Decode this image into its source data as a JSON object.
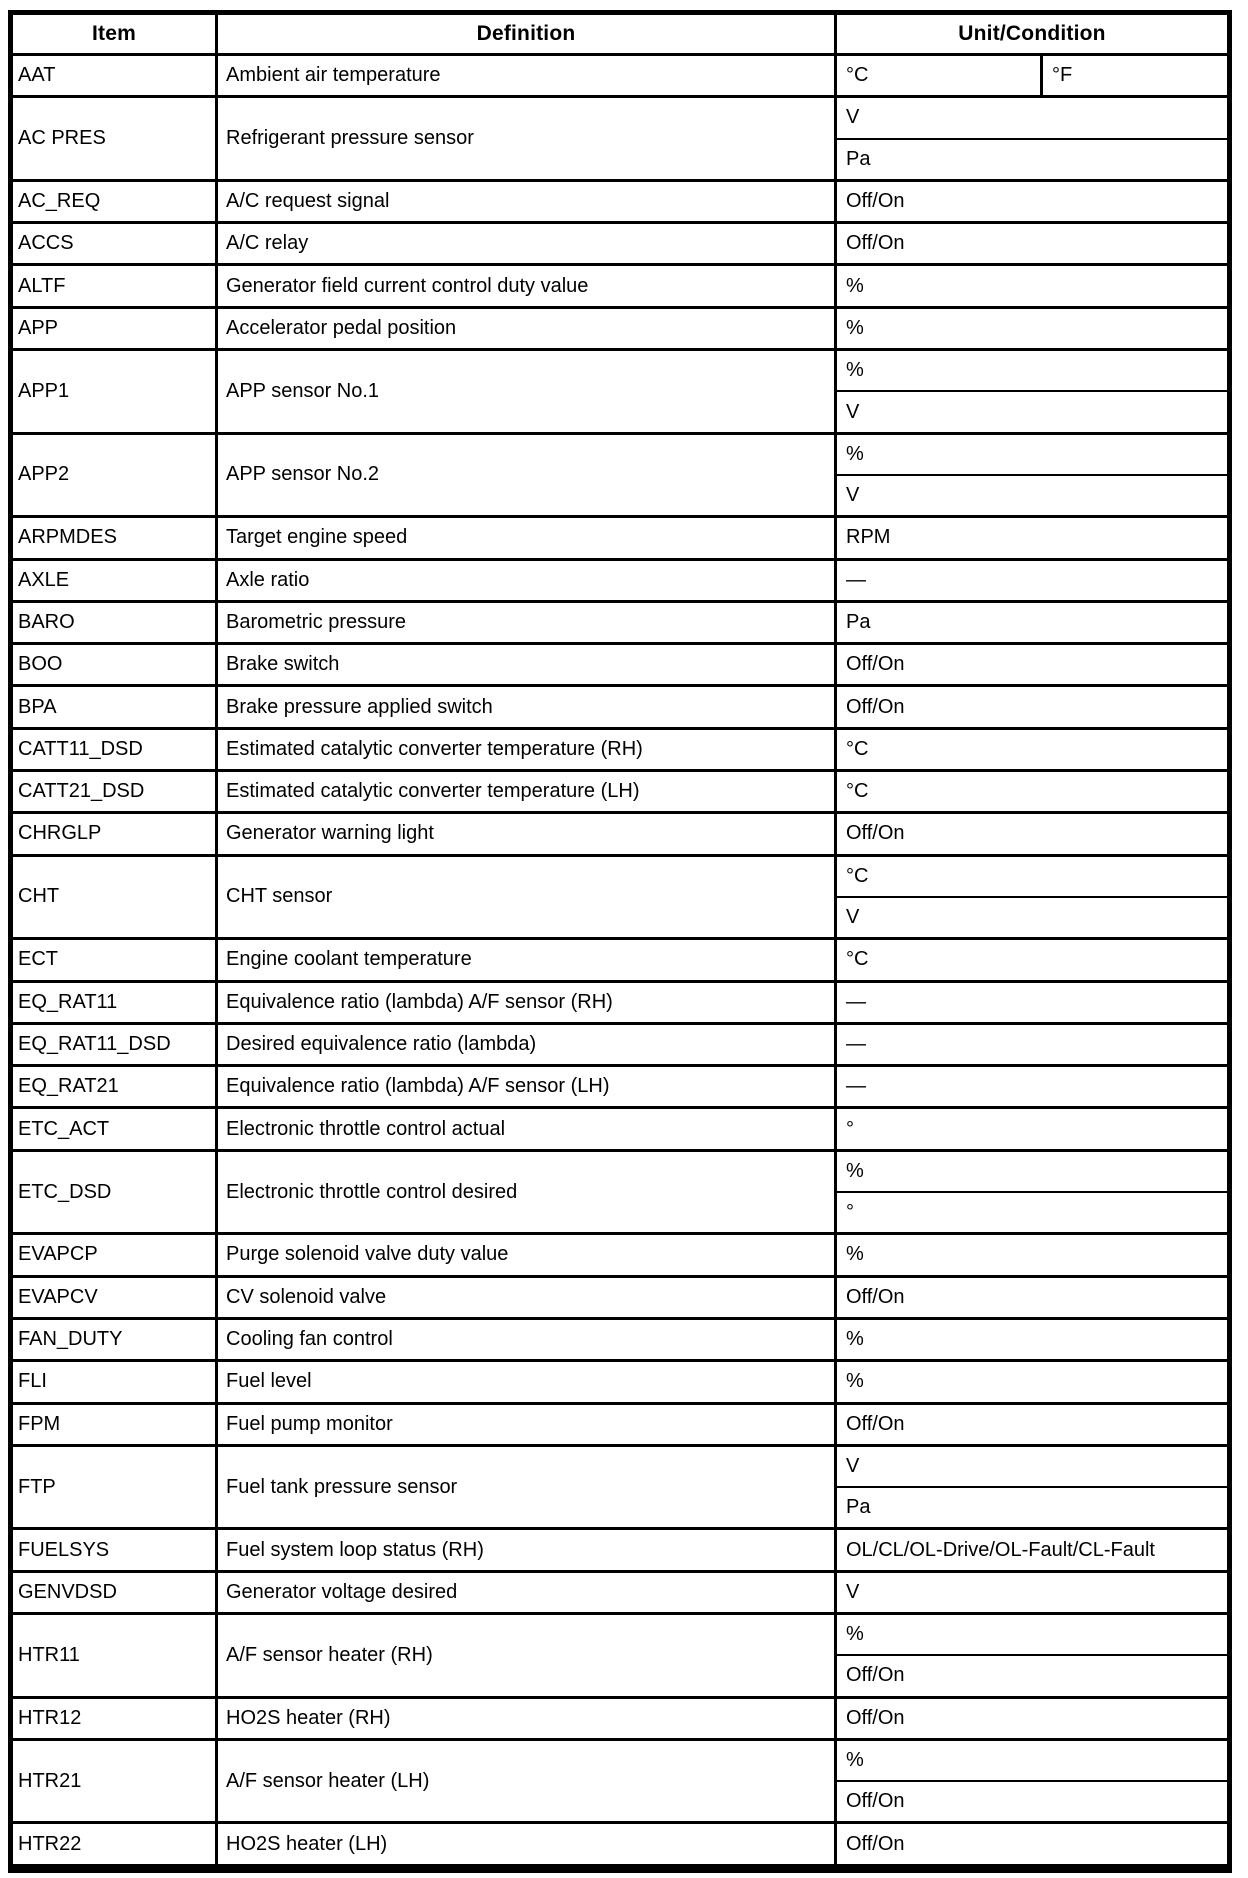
{
  "document": {
    "columns": {
      "item": "Item",
      "definition": "Definition",
      "unit": "Unit/Condition"
    },
    "rows": [
      {
        "item": "AAT",
        "definition": "Ambient air temperature",
        "units": [
          [
            "°C",
            "°F"
          ]
        ]
      },
      {
        "item": "AC PRES",
        "definition": "Refrigerant pressure sensor",
        "units": [
          [
            "V"
          ],
          [
            "Pa"
          ]
        ]
      },
      {
        "item": "AC_REQ",
        "definition": "A/C request signal",
        "units": [
          [
            "Off/On"
          ]
        ]
      },
      {
        "item": "ACCS",
        "definition": "A/C relay",
        "units": [
          [
            "Off/On"
          ]
        ]
      },
      {
        "item": "ALTF",
        "definition": "Generator field current control duty value",
        "units": [
          [
            "%"
          ]
        ]
      },
      {
        "item": "APP",
        "definition": "Accelerator pedal position",
        "units": [
          [
            "%"
          ]
        ]
      },
      {
        "item": "APP1",
        "definition": "APP sensor No.1",
        "units": [
          [
            "%"
          ],
          [
            "V"
          ]
        ]
      },
      {
        "item": "APP2",
        "definition": "APP sensor No.2",
        "units": [
          [
            "%"
          ],
          [
            "V"
          ]
        ]
      },
      {
        "item": "ARPMDES",
        "definition": "Target engine speed",
        "units": [
          [
            "RPM"
          ]
        ]
      },
      {
        "item": "AXLE",
        "definition": "Axle ratio",
        "units": [
          [
            "—"
          ]
        ]
      },
      {
        "item": "BARO",
        "definition": "Barometric pressure",
        "units": [
          [
            "Pa"
          ]
        ]
      },
      {
        "item": "BOO",
        "definition": "Brake switch",
        "units": [
          [
            "Off/On"
          ]
        ]
      },
      {
        "item": "BPA",
        "definition": "Brake pressure applied switch",
        "units": [
          [
            "Off/On"
          ]
        ]
      },
      {
        "item": "CATT11_DSD",
        "definition": "Estimated catalytic converter temperature (RH)",
        "units": [
          [
            "°C"
          ]
        ]
      },
      {
        "item": "CATT21_DSD",
        "definition": "Estimated catalytic converter temperature (LH)",
        "units": [
          [
            "°C"
          ]
        ]
      },
      {
        "item": "CHRGLP",
        "definition": "Generator warning light",
        "units": [
          [
            "Off/On"
          ]
        ]
      },
      {
        "item": "CHT",
        "definition": "CHT sensor",
        "units": [
          [
            "°C"
          ],
          [
            "V"
          ]
        ]
      },
      {
        "item": "ECT",
        "definition": "Engine coolant temperature",
        "units": [
          [
            "°C"
          ]
        ]
      },
      {
        "item": "EQ_RAT11",
        "definition": "Equivalence ratio (lambda) A/F sensor (RH)",
        "units": [
          [
            "—"
          ]
        ]
      },
      {
        "item": "EQ_RAT11_DSD",
        "definition": "Desired equivalence ratio (lambda)",
        "units": [
          [
            "—"
          ]
        ]
      },
      {
        "item": "EQ_RAT21",
        "definition": "Equivalence ratio (lambda) A/F sensor (LH)",
        "units": [
          [
            "—"
          ]
        ]
      },
      {
        "item": "ETC_ACT",
        "definition": "Electronic throttle control actual",
        "units": [
          [
            "°"
          ]
        ]
      },
      {
        "item": "ETC_DSD",
        "definition": "Electronic throttle control desired",
        "units": [
          [
            "%"
          ],
          [
            "°"
          ]
        ]
      },
      {
        "item": "EVAPCP",
        "definition": "Purge solenoid valve duty value",
        "units": [
          [
            "%"
          ]
        ]
      },
      {
        "item": "EVAPCV",
        "definition": "CV solenoid valve",
        "units": [
          [
            "Off/On"
          ]
        ]
      },
      {
        "item": "FAN_DUTY",
        "definition": "Cooling fan control",
        "units": [
          [
            "%"
          ]
        ]
      },
      {
        "item": "FLI",
        "definition": "Fuel level",
        "units": [
          [
            "%"
          ]
        ]
      },
      {
        "item": "FPM",
        "definition": "Fuel pump monitor",
        "units": [
          [
            "Off/On"
          ]
        ]
      },
      {
        "item": "FTP",
        "definition": "Fuel tank pressure sensor",
        "units": [
          [
            "V"
          ],
          [
            "Pa"
          ]
        ]
      },
      {
        "item": "FUELSYS",
        "definition": "Fuel system loop status (RH)",
        "units": [
          [
            "OL/CL/OL-Drive/OL-Fault/CL-Fault"
          ]
        ]
      },
      {
        "item": "GENVDSD",
        "definition": "Generator voltage desired",
        "units": [
          [
            "V"
          ]
        ]
      },
      {
        "item": "HTR11",
        "definition": "A/F sensor heater (RH)",
        "units": [
          [
            "%"
          ],
          [
            "Off/On"
          ]
        ]
      },
      {
        "item": "HTR12",
        "definition": "HO2S heater (RH)",
        "units": [
          [
            "Off/On"
          ]
        ]
      },
      {
        "item": "HTR21",
        "definition": "A/F sensor heater (LH)",
        "units": [
          [
            "%"
          ],
          [
            "Off/On"
          ]
        ]
      },
      {
        "item": "HTR22",
        "definition": "HO2S heater (LH)",
        "units": [
          [
            "Off/On"
          ]
        ]
      }
    ],
    "colors": {
      "ink": "#000000",
      "paper": "#ffffff"
    }
  }
}
